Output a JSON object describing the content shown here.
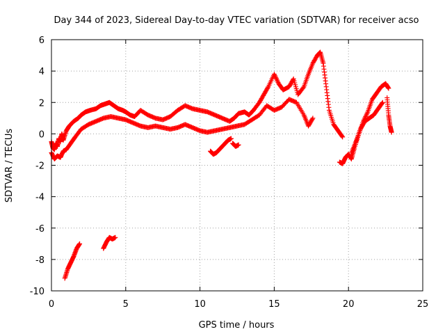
{
  "chart_data": {
    "type": "scatter",
    "title": "Day 344 of 2023, Sidereal Day-to-day VTEC variation (SDTVAR) for receiver acso",
    "xlabel": "GPS time / hours",
    "ylabel": "SDTVAR / TECUs",
    "xlim": [
      0,
      25
    ],
    "ylim": [
      -10,
      6
    ],
    "xticks": [
      0,
      5,
      10,
      15,
      20,
      25
    ],
    "yticks": [
      -10,
      -8,
      -6,
      -4,
      -2,
      0,
      2,
      4,
      6
    ],
    "grid": true,
    "marker": "+",
    "color": "#ff0000",
    "series": [
      {
        "name": "main-trace-upper",
        "x": [
          0.0,
          0.1,
          0.2,
          0.3,
          0.4,
          0.5,
          0.6,
          0.7,
          0.8,
          1.0,
          1.2,
          1.5,
          1.8,
          2.0,
          2.3,
          2.6,
          3.0,
          3.3,
          3.6,
          3.9,
          4.2,
          4.5,
          4.8,
          5.0,
          5.3,
          5.6,
          6.0,
          6.5,
          7.0,
          7.5,
          8.0,
          8.5,
          9.0,
          9.5,
          10.0,
          10.5,
          11.0,
          11.5,
          12.0,
          12.3,
          12.6,
          13.0,
          13.3,
          13.6,
          14.0,
          14.3,
          14.6,
          15.0,
          15.3,
          15.6,
          16.0,
          16.3,
          16.6,
          17.0,
          17.3,
          17.6,
          17.9,
          18.1,
          18.3,
          18.5,
          18.7,
          19.0,
          19.3,
          19.6
        ],
        "y": [
          -0.5,
          -0.9,
          -1.0,
          -0.6,
          -0.8,
          -0.3,
          -0.5,
          0.0,
          -0.4,
          0.2,
          0.5,
          0.8,
          1.0,
          1.2,
          1.4,
          1.5,
          1.6,
          1.8,
          1.9,
          2.0,
          1.8,
          1.6,
          1.5,
          1.4,
          1.2,
          1.1,
          1.5,
          1.2,
          1.0,
          0.9,
          1.1,
          1.5,
          1.8,
          1.6,
          1.5,
          1.4,
          1.2,
          1.0,
          0.8,
          1.0,
          1.3,
          1.4,
          1.2,
          1.5,
          2.0,
          2.5,
          3.0,
          3.8,
          3.2,
          2.8,
          3.0,
          3.5,
          2.5,
          3.0,
          3.8,
          4.5,
          5.0,
          5.2,
          4.5,
          3.0,
          1.5,
          0.6,
          0.2,
          -0.2
        ]
      },
      {
        "name": "main-trace-lower",
        "x": [
          0.0,
          0.2,
          0.4,
          0.6,
          0.8,
          1.0,
          1.3,
          1.6,
          2.0,
          2.5,
          3.0,
          3.5,
          4.0,
          4.5,
          5.0,
          5.5,
          6.0,
          6.5,
          7.0,
          7.5,
          8.0,
          8.5,
          9.0,
          9.5,
          10.0,
          10.5,
          11.0,
          11.5,
          12.0,
          12.5,
          13.0,
          13.5,
          14.0,
          14.5,
          15.0,
          15.5,
          16.0,
          16.5,
          17.0,
          17.3,
          17.6
        ],
        "y": [
          -1.2,
          -1.6,
          -1.4,
          -1.5,
          -1.1,
          -1.0,
          -0.6,
          -0.2,
          0.3,
          0.6,
          0.8,
          1.0,
          1.1,
          1.0,
          0.9,
          0.7,
          0.5,
          0.4,
          0.5,
          0.4,
          0.3,
          0.4,
          0.6,
          0.4,
          0.2,
          0.1,
          0.2,
          0.3,
          0.4,
          0.5,
          0.6,
          0.9,
          1.2,
          1.8,
          1.5,
          1.7,
          2.2,
          2.0,
          1.2,
          0.5,
          1.0
        ]
      },
      {
        "name": "dip-segment-11h",
        "x": [
          10.7,
          10.9,
          11.1,
          11.3,
          11.5,
          11.7,
          11.9,
          12.1
        ],
        "y": [
          -1.1,
          -1.3,
          -1.2,
          -1.0,
          -0.8,
          -0.6,
          -0.4,
          -0.3
        ]
      },
      {
        "name": "dip-segment-12h",
        "x": [
          12.2,
          12.4,
          12.6
        ],
        "y": [
          -0.6,
          -0.8,
          -0.7
        ]
      },
      {
        "name": "late-trace-19h",
        "x": [
          19.4,
          19.6,
          19.8,
          20.0,
          20.2,
          20.4,
          20.7,
          21.0,
          21.3,
          21.6,
          21.9,
          22.2,
          22.5,
          22.7
        ],
        "y": [
          -1.8,
          -1.9,
          -1.5,
          -1.3,
          -1.6,
          -0.9,
          0.0,
          0.8,
          1.4,
          2.2,
          2.6,
          3.0,
          3.2,
          2.9
        ]
      },
      {
        "name": "late-trace-20h",
        "x": [
          20.2,
          20.5,
          20.8,
          21.1,
          21.4,
          21.7,
          22.0,
          22.3
        ],
        "y": [
          -1.2,
          -0.5,
          0.3,
          0.8,
          1.0,
          1.2,
          1.6,
          2.0
        ]
      },
      {
        "name": "late-trace-23h",
        "x": [
          22.6,
          22.7,
          22.8,
          22.9
        ],
        "y": [
          2.3,
          1.2,
          0.5,
          0.1
        ]
      },
      {
        "name": "outlier-trace-1h",
        "x": [
          0.9,
          1.1,
          1.3,
          1.5,
          1.7,
          1.9
        ],
        "y": [
          -9.2,
          -8.6,
          -8.2,
          -7.8,
          -7.3,
          -7.0
        ]
      },
      {
        "name": "outlier-trace-4h",
        "x": [
          3.5,
          3.7,
          3.9,
          4.1,
          4.3
        ],
        "y": [
          -7.3,
          -6.9,
          -6.6,
          -6.7,
          -6.6
        ]
      }
    ]
  }
}
